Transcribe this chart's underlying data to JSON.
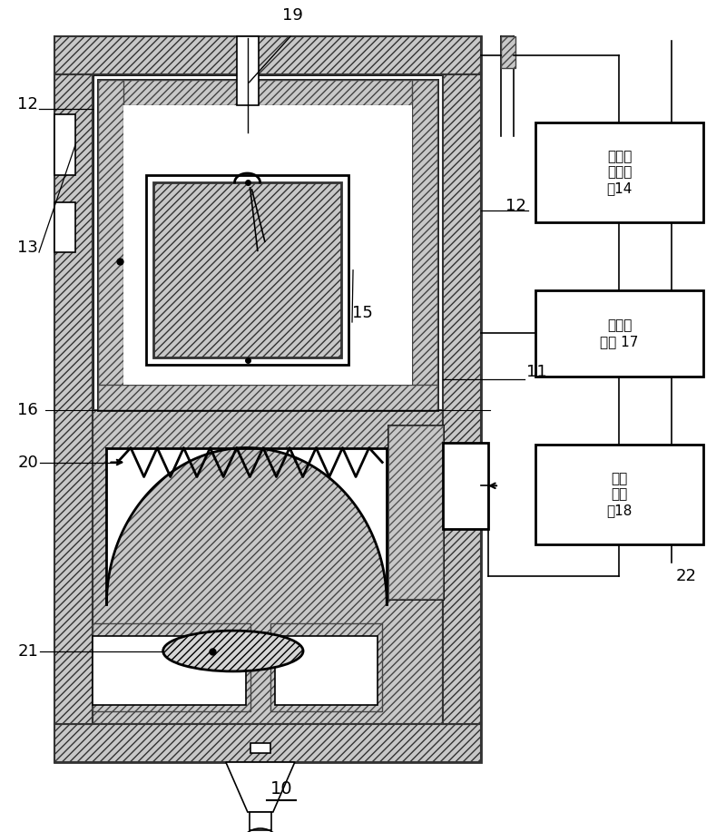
{
  "bg_color": "#ffffff",
  "hatch_fc": "#c8c8c8",
  "hatch_pattern": "////",
  "lw_main": 2.0,
  "lw_thin": 1.2,
  "box_14_text": "温度记\n录控制\n妓14",
  "box_17_text": "信号输\n出器 17",
  "box_18_text": "安全\n报警\n妓18",
  "label_10": "10",
  "label_11": "11",
  "label_12a": "12",
  "label_12b": "12",
  "label_13": "13",
  "label_15": "15",
  "label_16": "16",
  "label_19": "19",
  "label_20": "20",
  "label_21": "21",
  "label_22": "22"
}
